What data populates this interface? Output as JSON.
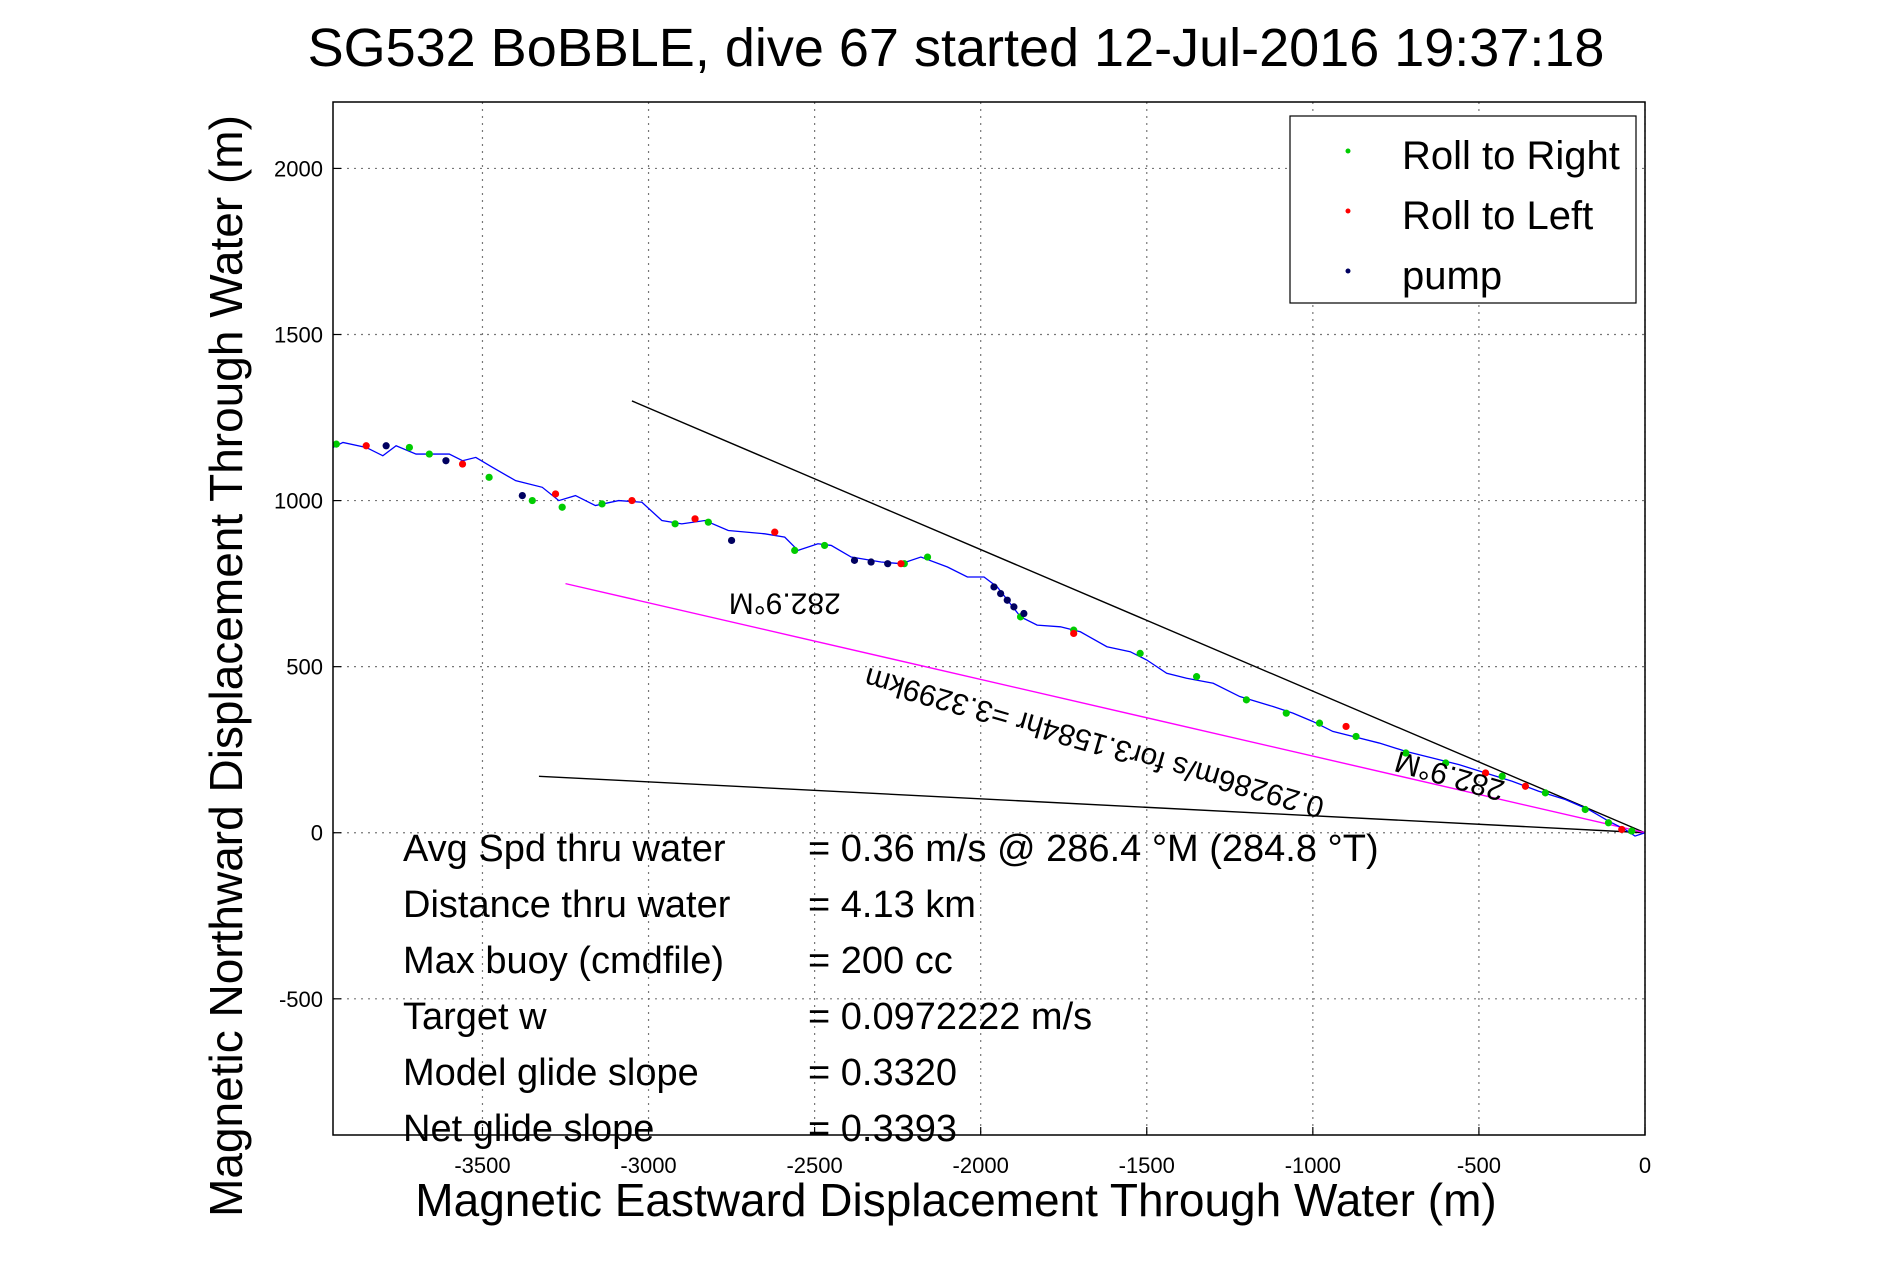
{
  "chart_data": {
    "type": "line",
    "title": "SG532 BoBBLE, dive 67 started 12-Jul-2016 19:37:18",
    "xlabel": "Magnetic Eastward Displacement Through Water (m)",
    "ylabel": "Magnetic Northward Displacement Through Water (m)",
    "xlim": [
      -3950,
      0
    ],
    "ylim": [
      -910,
      2200
    ],
    "xticks": [
      -3500,
      -3000,
      -2500,
      -2000,
      -1500,
      -1000,
      -500,
      0
    ],
    "xtick_labels": [
      "-3500",
      "-3000",
      "-2500",
      "-2000",
      "-1500",
      "-1000",
      "-500",
      "0"
    ],
    "yticks": [
      -500,
      0,
      500,
      1000,
      1500,
      2000
    ],
    "ytick_labels": [
      "-500",
      "0",
      "500",
      "1000",
      "1500",
      "2000"
    ],
    "grid": true,
    "legend_position": "top-right",
    "colors": {
      "track": "#0000ff",
      "roll_right": "#00cc00",
      "roll_left": "#ff0000",
      "pump": "#000060",
      "reference_line": "#000000",
      "current_line": "#ff00ff"
    },
    "series": [
      {
        "name": "Roll to Right",
        "marker": "dot",
        "color": "#00cc00",
        "points": [
          [
            -3940,
            1170
          ],
          [
            -3720,
            1160
          ],
          [
            -3660,
            1140
          ],
          [
            -3480,
            1070
          ],
          [
            -3350,
            1000
          ],
          [
            -3260,
            980
          ],
          [
            -3140,
            990
          ],
          [
            -2920,
            930
          ],
          [
            -2820,
            935
          ],
          [
            -2560,
            850
          ],
          [
            -2470,
            865
          ],
          [
            -2230,
            810
          ],
          [
            -2160,
            830
          ],
          [
            -1880,
            650
          ],
          [
            -1720,
            610
          ],
          [
            -1520,
            540
          ],
          [
            -1350,
            470
          ],
          [
            -1200,
            400
          ],
          [
            -1080,
            360
          ],
          [
            -980,
            330
          ],
          [
            -870,
            290
          ],
          [
            -720,
            240
          ],
          [
            -600,
            210
          ],
          [
            -430,
            170
          ],
          [
            -300,
            120
          ],
          [
            -180,
            70
          ],
          [
            -110,
            30
          ],
          [
            -40,
            5
          ]
        ]
      },
      {
        "name": "Roll to Left",
        "marker": "dot",
        "color": "#ff0000",
        "points": [
          [
            -3850,
            1165
          ],
          [
            -3560,
            1110
          ],
          [
            -3280,
            1020
          ],
          [
            -3050,
            1000
          ],
          [
            -2860,
            945
          ],
          [
            -2620,
            905
          ],
          [
            -2240,
            810
          ],
          [
            -1720,
            600
          ],
          [
            -900,
            320
          ],
          [
            -480,
            180
          ],
          [
            -360,
            140
          ],
          [
            -70,
            10
          ]
        ]
      },
      {
        "name": "pump",
        "marker": "dot",
        "color": "#000060",
        "points": [
          [
            -3790,
            1165
          ],
          [
            -3610,
            1120
          ],
          [
            -3380,
            1015
          ],
          [
            -2750,
            880
          ],
          [
            -2380,
            820
          ],
          [
            -2330,
            815
          ],
          [
            -2280,
            810
          ],
          [
            -1960,
            740
          ],
          [
            -1940,
            720
          ],
          [
            -1920,
            700
          ],
          [
            -1900,
            680
          ],
          [
            -1870,
            660
          ]
        ]
      }
    ],
    "track": [
      [
        -3950,
        1160
      ],
      [
        -3920,
        1175
      ],
      [
        -3850,
        1160
      ],
      [
        -3800,
        1135
      ],
      [
        -3760,
        1165
      ],
      [
        -3700,
        1140
      ],
      [
        -3600,
        1140
      ],
      [
        -3560,
        1120
      ],
      [
        -3520,
        1130
      ],
      [
        -3470,
        1100
      ],
      [
        -3400,
        1060
      ],
      [
        -3320,
        1040
      ],
      [
        -3270,
        1000
      ],
      [
        -3220,
        1015
      ],
      [
        -3160,
        985
      ],
      [
        -3090,
        1000
      ],
      [
        -3020,
        995
      ],
      [
        -2960,
        940
      ],
      [
        -2900,
        930
      ],
      [
        -2830,
        940
      ],
      [
        -2760,
        910
      ],
      [
        -2650,
        900
      ],
      [
        -2590,
        890
      ],
      [
        -2550,
        850
      ],
      [
        -2490,
        870
      ],
      [
        -2450,
        865
      ],
      [
        -2390,
        830
      ],
      [
        -2300,
        815
      ],
      [
        -2240,
        810
      ],
      [
        -2180,
        830
      ],
      [
        -2100,
        800
      ],
      [
        -2040,
        770
      ],
      [
        -1990,
        770
      ],
      [
        -1950,
        740
      ],
      [
        -1880,
        650
      ],
      [
        -1830,
        625
      ],
      [
        -1760,
        620
      ],
      [
        -1700,
        605
      ],
      [
        -1620,
        560
      ],
      [
        -1550,
        545
      ],
      [
        -1500,
        520
      ],
      [
        -1440,
        480
      ],
      [
        -1380,
        465
      ],
      [
        -1300,
        450
      ],
      [
        -1220,
        410
      ],
      [
        -1120,
        380
      ],
      [
        -1060,
        360
      ],
      [
        -1000,
        335
      ],
      [
        -940,
        305
      ],
      [
        -880,
        290
      ],
      [
        -800,
        270
      ],
      [
        -720,
        245
      ],
      [
        -640,
        225
      ],
      [
        -560,
        205
      ],
      [
        -480,
        180
      ],
      [
        -400,
        155
      ],
      [
        -320,
        125
      ],
      [
        -240,
        100
      ],
      [
        -170,
        70
      ],
      [
        -110,
        35
      ],
      [
        -60,
        10
      ],
      [
        -30,
        -10
      ],
      [
        0,
        0
      ]
    ],
    "reference_lines": [
      {
        "x": [
          -3050,
          0
        ],
        "y": [
          1300,
          0
        ],
        "color": "#000000"
      },
      {
        "x": [
          -3330,
          0
        ],
        "y": [
          170,
          0
        ],
        "color": "#000000"
      },
      {
        "x": [
          -3250,
          0
        ],
        "y": [
          750,
          0
        ],
        "color": "#ff00ff"
      }
    ],
    "annotations": [
      {
        "text": "282.9°M",
        "x": -2590,
        "y": 720,
        "rotation": 180
      },
      {
        "text": "0.29286m/s for3.1584hr =3.3299km",
        "x": -1650,
        "y": 300,
        "rotation": 196
      },
      {
        "text": "282.9°M",
        "x": -580,
        "y": 200,
        "rotation": 196
      }
    ],
    "stats": [
      {
        "label": "Avg Spd thru water",
        "value": "=  0.36 m/s @ 286.4 °M (284.8 °T)"
      },
      {
        "label": "Distance thru water",
        "value": "=  4.13 km"
      },
      {
        "label": "Max buoy (cmdfile)",
        "value": "= 200 cc"
      },
      {
        "label": "Target w",
        "value": "= 0.0972222 m/s"
      },
      {
        "label": "Model glide slope",
        "value": "= 0.3320"
      },
      {
        "label": "Net glide slope",
        "value": "= 0.3393"
      }
    ]
  }
}
